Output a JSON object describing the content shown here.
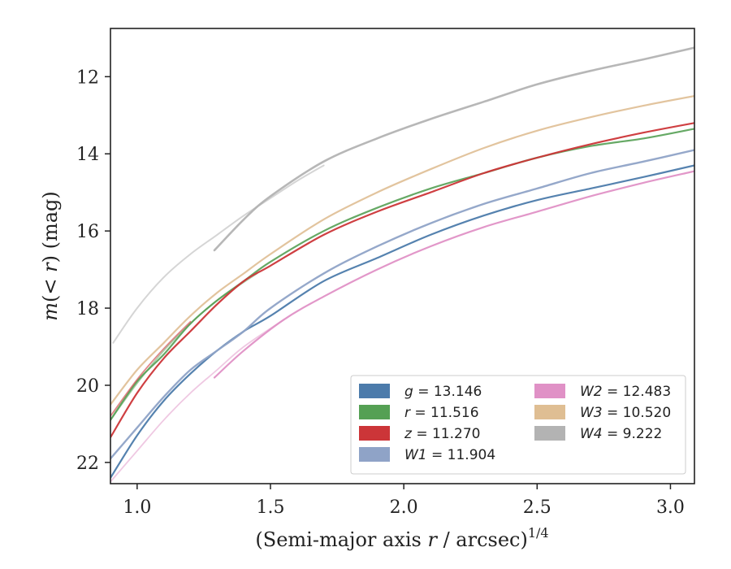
{
  "chart_data": {
    "type": "line",
    "xlabel": "(Semi-major axis r / arcsec)",
    "xlabel_prefix": "(Semi-major axis ",
    "xlabel_var": "r",
    "xlabel_suffix": " / arcsec)",
    "xlabel_sup": "1/4",
    "ylabel": "m(< r) (mag)",
    "ylabel_func": "m",
    "ylabel_args": "(< ",
    "ylabel_var": "r",
    "ylabel_close": ")",
    "ylabel_unit": " (mag)",
    "xlim": [
      0.9,
      3.09
    ],
    "ylim": [
      22.55,
      10.75
    ],
    "y_inverted": true,
    "xticks": [
      1.0,
      1.5,
      2.0,
      2.5,
      3.0
    ],
    "xtick_labels": [
      "1.0",
      "1.5",
      "2.0",
      "2.5",
      "3.0"
    ],
    "yticks": [
      12,
      14,
      16,
      18,
      20,
      22
    ],
    "ytick_labels": [
      "12",
      "14",
      "16",
      "18",
      "20",
      "22"
    ],
    "grid": false,
    "legend_position": "lower-right",
    "legend": [
      {
        "var": "g",
        "text": " = 13.146",
        "color": "#4c7bab"
      },
      {
        "var": "r",
        "text": " = 11.516",
        "color": "#55a054"
      },
      {
        "var": "z",
        "text": " = 11.270",
        "color": "#cc3538"
      },
      {
        "var": "W1",
        "text": " = 11.904",
        "color": "#8fa3c7"
      },
      {
        "var": "W2",
        "text": " = 12.483",
        "color": "#e091c6"
      },
      {
        "var": "W3",
        "text": " = 10.520",
        "color": "#dfbe93"
      },
      {
        "var": "W4",
        "text": " = 9.222",
        "color": "#b3b3b3"
      }
    ],
    "series": [
      {
        "name": "g = 13.146",
        "color": "#4c7bab",
        "opacity": 0.95,
        "width": 2.2,
        "x": [
          0.9,
          1.0,
          1.1,
          1.2,
          1.3,
          1.4,
          1.5,
          1.7,
          1.9,
          2.1,
          2.3,
          2.5,
          2.7,
          2.9,
          3.09
        ],
        "y": [
          22.4,
          21.3,
          20.4,
          19.7,
          19.1,
          18.6,
          18.2,
          17.3,
          16.7,
          16.1,
          15.6,
          15.2,
          14.9,
          14.6,
          14.3
        ]
      },
      {
        "name": "r = 11.516",
        "color": "#55a054",
        "opacity": 0.9,
        "width": 2.2,
        "x": [
          0.9,
          1.0,
          1.1,
          1.2,
          1.3,
          1.4,
          1.5,
          1.7,
          1.9,
          2.1,
          2.3,
          2.5,
          2.7,
          2.9,
          3.09
        ],
        "y": [
          20.9,
          19.9,
          19.2,
          18.4,
          17.8,
          17.3,
          16.8,
          16.0,
          15.4,
          14.9,
          14.5,
          14.1,
          13.8,
          13.6,
          13.35
        ]
      },
      {
        "name": "r = 11.516 (outer)",
        "color": "#55a054",
        "opacity": 0.5,
        "width": 1.8,
        "x": [
          0.9,
          1.0,
          1.1,
          1.2,
          1.3,
          1.45
        ],
        "y": [
          20.9,
          19.95,
          19.1,
          18.4,
          17.8,
          17.1
        ]
      },
      {
        "name": "z = 11.270",
        "color": "#cc3538",
        "opacity": 0.95,
        "width": 2.2,
        "x": [
          0.9,
          1.0,
          1.1,
          1.2,
          1.3,
          1.4,
          1.5,
          1.7,
          1.9,
          2.1,
          2.3,
          2.5,
          2.7,
          2.9,
          3.09
        ],
        "y": [
          21.35,
          20.2,
          19.3,
          18.6,
          17.9,
          17.3,
          16.9,
          16.1,
          15.5,
          15.0,
          14.5,
          14.1,
          13.75,
          13.45,
          13.2
        ]
      },
      {
        "name": "z = 11.270 (outer)",
        "color": "#cc3538",
        "opacity": 0.6,
        "width": 1.8,
        "x": [
          0.9,
          1.0,
          1.1,
          1.2
        ],
        "y": [
          20.8,
          19.85,
          19.05,
          18.35
        ]
      },
      {
        "name": "W1 = 11.904",
        "color": "#8fa3c7",
        "opacity": 0.95,
        "width": 2.4,
        "x": [
          0.9,
          1.0,
          1.1,
          1.2,
          1.3,
          1.4,
          1.5,
          1.7,
          1.9,
          2.1,
          2.3,
          2.5,
          2.7,
          2.9,
          3.09
        ],
        "y": [
          21.9,
          21.1,
          20.3,
          19.6,
          19.1,
          18.6,
          18.0,
          17.1,
          16.4,
          15.8,
          15.3,
          14.9,
          14.5,
          14.2,
          13.9
        ]
      },
      {
        "name": "W2 = 12.483",
        "color": "#e091c6",
        "opacity": 0.95,
        "width": 2.2,
        "x": [
          1.29,
          1.4,
          1.55,
          1.7,
          1.9,
          2.1,
          2.3,
          2.5,
          2.7,
          2.9,
          3.09
        ],
        "y": [
          19.8,
          19.1,
          18.3,
          17.7,
          17.0,
          16.4,
          15.9,
          15.5,
          15.1,
          14.75,
          14.45
        ]
      },
      {
        "name": "W2 = 12.483 (outer)",
        "color": "#e091c6",
        "opacity": 0.5,
        "width": 1.8,
        "x": [
          0.9,
          1.0,
          1.1,
          1.2,
          1.3,
          1.4,
          1.55
        ],
        "y": [
          22.5,
          21.7,
          20.9,
          20.2,
          19.6,
          19.0,
          18.3
        ]
      },
      {
        "name": "W3 = 10.520",
        "color": "#dfbe93",
        "opacity": 0.9,
        "width": 2.2,
        "x": [
          0.9,
          1.0,
          1.1,
          1.2,
          1.3,
          1.4,
          1.5,
          1.7,
          1.9,
          2.1,
          2.3,
          2.5,
          2.7,
          2.9,
          3.09
        ],
        "y": [
          20.5,
          19.6,
          18.9,
          18.2,
          17.6,
          17.1,
          16.6,
          15.7,
          15.0,
          14.4,
          13.85,
          13.4,
          13.05,
          12.75,
          12.5
        ]
      },
      {
        "name": "W4 = 9.222",
        "color": "#b3b3b3",
        "opacity": 0.95,
        "width": 2.6,
        "x": [
          1.29,
          1.4,
          1.5,
          1.7,
          1.9,
          2.1,
          2.3,
          2.5,
          2.7,
          2.9,
          3.09
        ],
        "y": [
          16.5,
          15.7,
          15.1,
          14.2,
          13.6,
          13.1,
          12.65,
          12.2,
          11.85,
          11.55,
          11.25
        ]
      },
      {
        "name": "W4 = 9.222 (outer)",
        "color": "#b3b3b3",
        "opacity": 0.55,
        "width": 2.0,
        "x": [
          0.91,
          1.0,
          1.1,
          1.2,
          1.3,
          1.4,
          1.5,
          1.6,
          1.7
        ],
        "y": [
          18.9,
          18.0,
          17.2,
          16.6,
          16.1,
          15.6,
          15.15,
          14.7,
          14.3
        ]
      }
    ]
  }
}
